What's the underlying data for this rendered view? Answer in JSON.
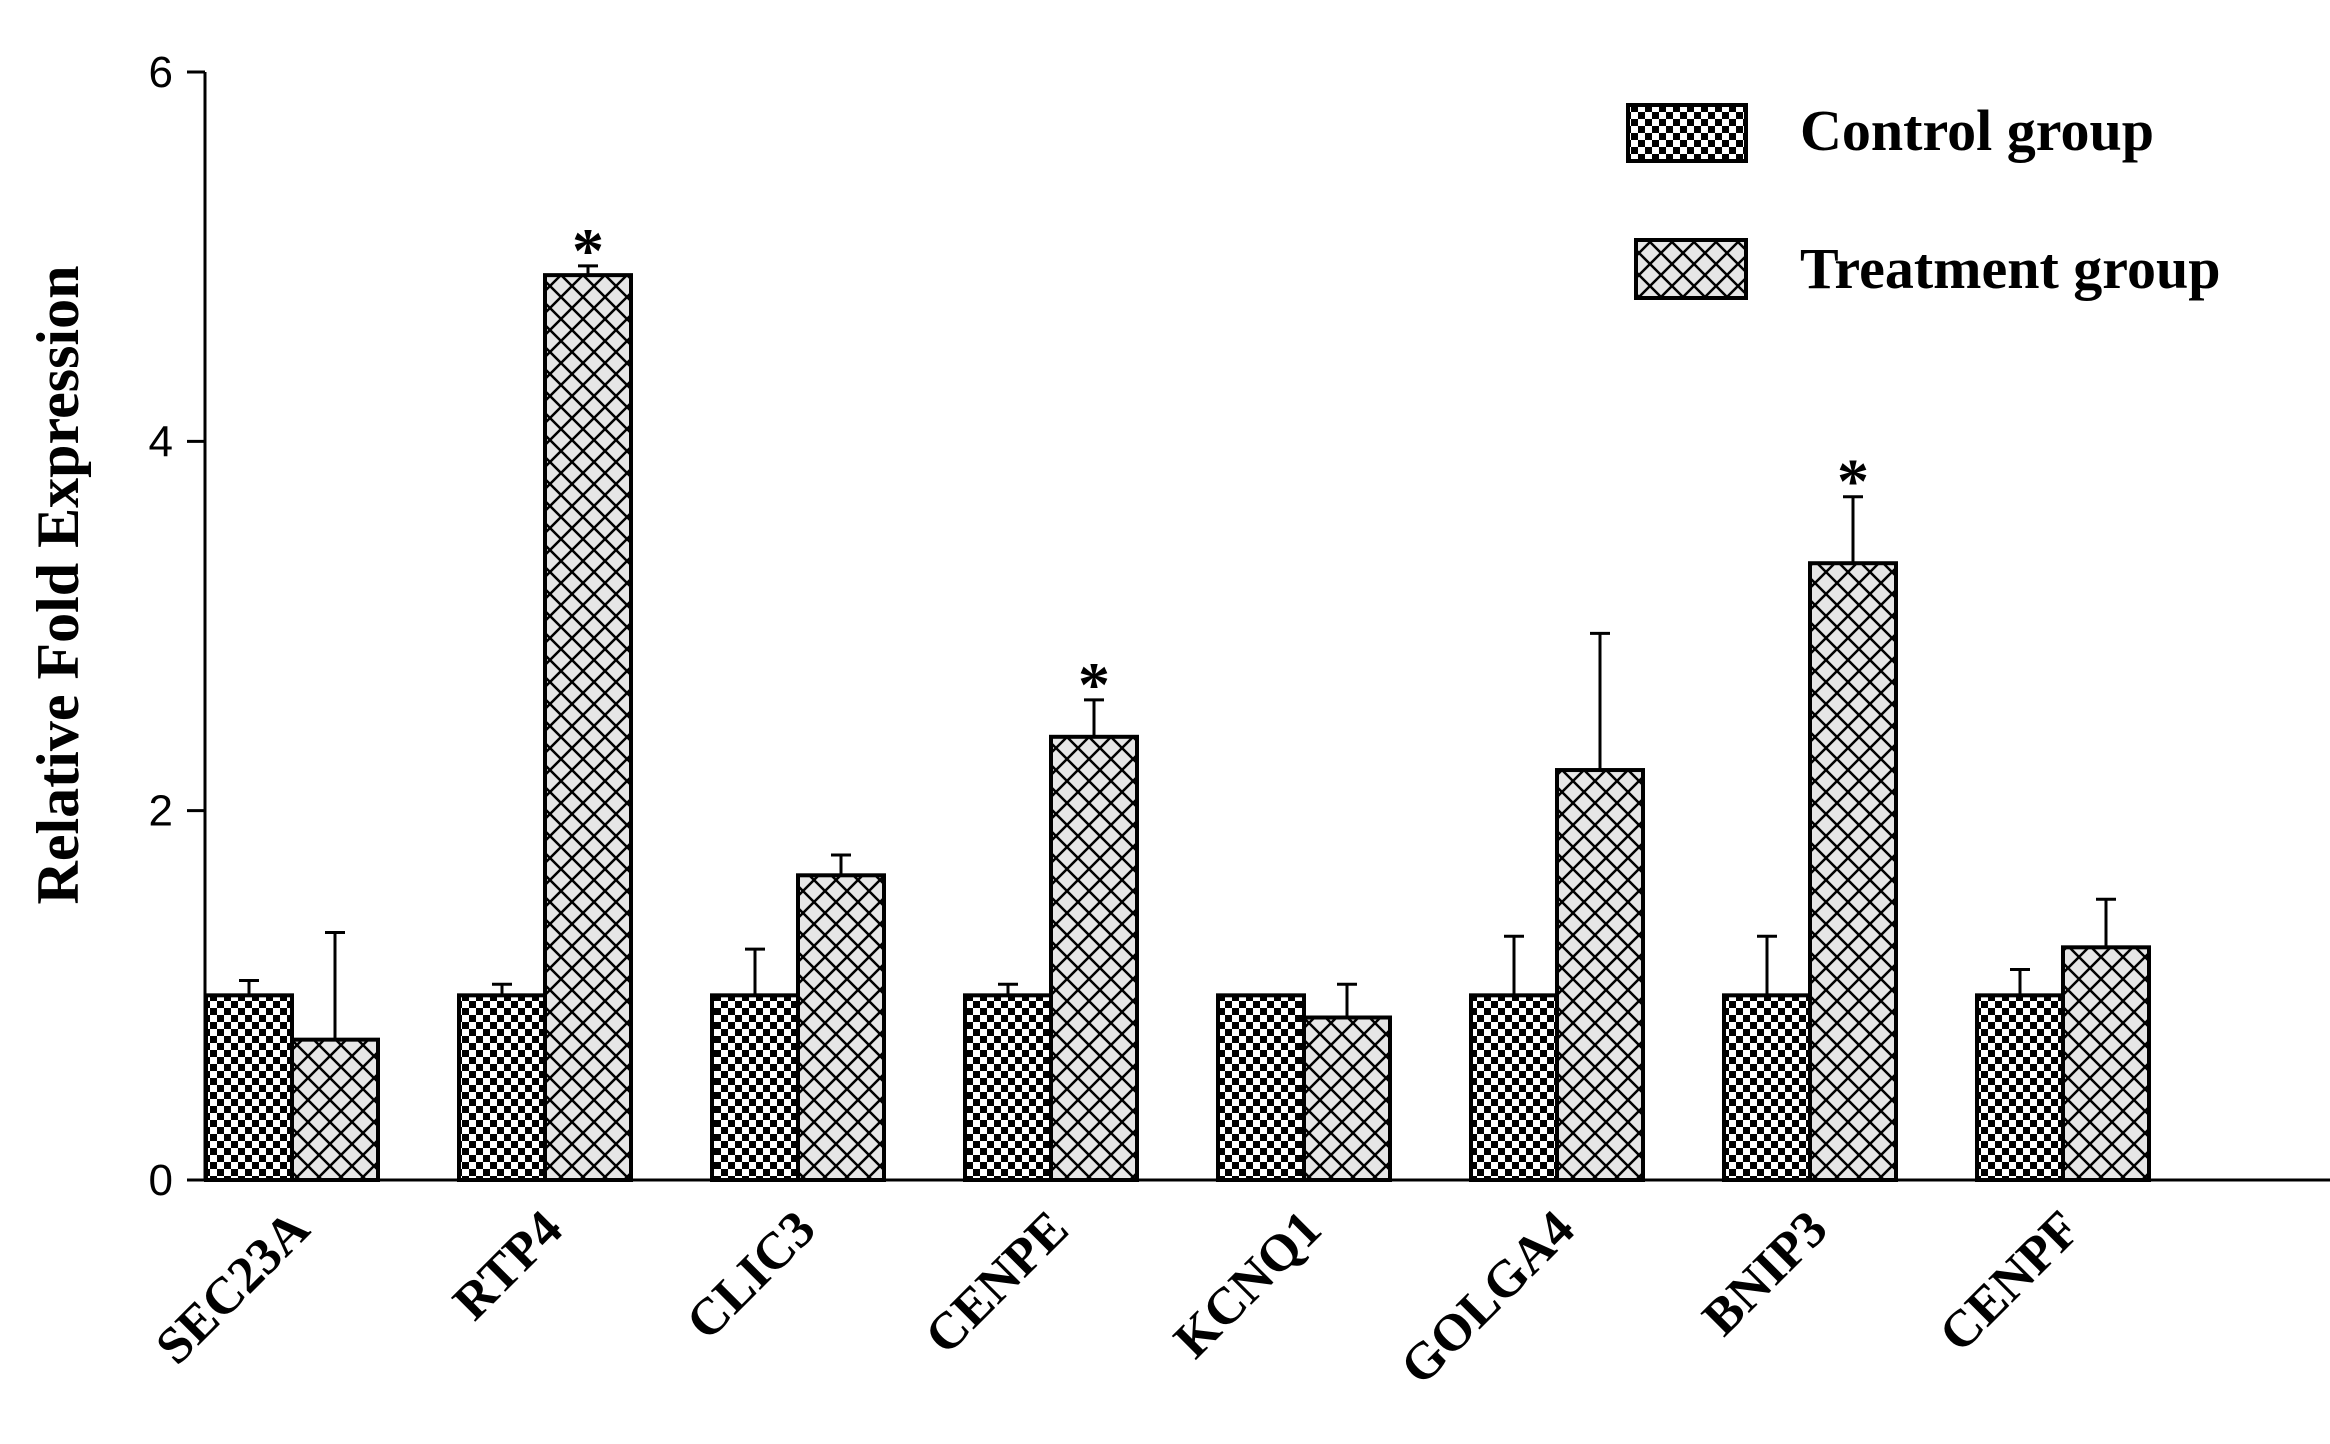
{
  "chart_data": {
    "type": "bar",
    "title": "",
    "xlabel": "",
    "ylabel": "Relative Fold Expression",
    "ylim": [
      0,
      6
    ],
    "yticks": [
      0,
      2,
      4,
      6
    ],
    "grid": false,
    "legend_position": "top-right",
    "categories": [
      "SEC23A",
      "RTP4",
      "CLIC3",
      "CENPE",
      "KCNQ1",
      "GOLGA4",
      "BNIP3",
      "CENPF"
    ],
    "series": [
      {
        "name": "Control group",
        "pattern": "checkerboard",
        "values": [
          1.0,
          1.0,
          1.0,
          1.0,
          1.0,
          1.0,
          1.0,
          1.0
        ],
        "error": [
          0.08,
          0.06,
          0.25,
          0.06,
          0.0,
          0.32,
          0.32,
          0.14
        ]
      },
      {
        "name": "Treatment group",
        "pattern": "crosshatch",
        "values": [
          0.76,
          4.9,
          1.65,
          2.4,
          0.88,
          2.22,
          3.34,
          1.26
        ],
        "error": [
          0.58,
          0.05,
          0.11,
          0.2,
          0.18,
          0.74,
          0.36,
          0.26
        ]
      }
    ],
    "significance_marks": [
      {
        "category": "RTP4",
        "series": "Treatment group",
        "label": "*"
      },
      {
        "category": "CENPE",
        "series": "Treatment group",
        "label": "*"
      },
      {
        "category": "BNIP3",
        "series": "Treatment group",
        "label": "*"
      }
    ]
  },
  "colors": {
    "axis": "#000000",
    "bar_stroke": "#000000",
    "control_fill": "#000000",
    "control_bg": "#ffffff",
    "treatment_fill": "#e6e6e6",
    "treatment_hatch": "#000000"
  }
}
